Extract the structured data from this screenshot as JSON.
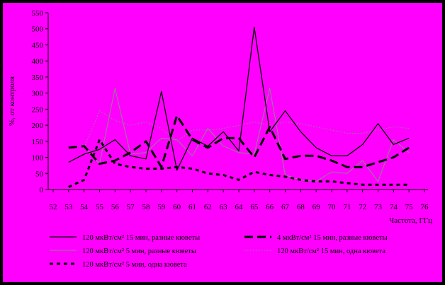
{
  "colors": {
    "background": "#FF00FF",
    "outer_frame": "#000000",
    "lines": "#000000",
    "thin_line_gray": "#888888"
  },
  "chart_data": {
    "type": "line",
    "title": "",
    "xlabel": "Частота, ГГц",
    "ylabel": "%, от контроля",
    "x": [
      52,
      53,
      54,
      55,
      56,
      57,
      58,
      59,
      60,
      61,
      62,
      63,
      64,
      65,
      66,
      67,
      68,
      69,
      70,
      71,
      72,
      73,
      74,
      75,
      76
    ],
    "xlim": [
      52,
      76
    ],
    "ylim": [
      0,
      550
    ],
    "yticks": [
      0,
      50,
      100,
      150,
      200,
      250,
      300,
      350,
      400,
      450,
      500,
      550
    ],
    "grid": false,
    "legend_position": "bottom",
    "series": [
      {
        "name": "120 мкВт/см² 15 мин, разные кюветы",
        "style": "solid-thin",
        "x": [
          53,
          54,
          55,
          56,
          57,
          58,
          59,
          60,
          61,
          62,
          63,
          64,
          65,
          66,
          67,
          68,
          69,
          70,
          71,
          72,
          73,
          74,
          75
        ],
        "values": [
          85,
          110,
          125,
          155,
          105,
          95,
          305,
          60,
          160,
          135,
          180,
          120,
          505,
          180,
          245,
          180,
          130,
          105,
          105,
          140,
          205,
          140,
          160
        ]
      },
      {
        "name": "4 мкВт/см² 15 мин, разные кюветы",
        "style": "dash-thick",
        "x": [
          53,
          54,
          55,
          56,
          57,
          58,
          59,
          60,
          61,
          62,
          63,
          64,
          65,
          66,
          67,
          68,
          69,
          70,
          71,
          72,
          73,
          74,
          75
        ],
        "values": [
          130,
          135,
          80,
          90,
          115,
          150,
          70,
          230,
          155,
          130,
          160,
          160,
          100,
          195,
          95,
          105,
          105,
          90,
          70,
          70,
          85,
          100,
          130
        ]
      },
      {
        "name": "120 мкВт/см² 5 мин, разные кюветы",
        "style": "solid-hairline",
        "x": [
          54,
          55,
          56,
          57,
          58,
          59,
          60,
          61,
          62,
          63,
          64,
          65,
          66,
          67,
          68,
          69,
          70,
          71,
          72,
          73,
          74,
          75
        ],
        "values": [
          135,
          80,
          315,
          110,
          115,
          160,
          155,
          105,
          190,
          135,
          115,
          110,
          315,
          45,
          30,
          25,
          55,
          50,
          90,
          25,
          155,
          115
        ]
      },
      {
        "name": "120 мкВт/см² 15 мин, одна кювета",
        "style": "dotted-thin",
        "x": [
          54,
          55,
          56,
          57,
          58,
          59,
          60,
          61,
          62,
          63,
          64,
          65,
          66,
          67,
          68,
          69,
          70,
          71,
          72,
          73,
          74,
          75
        ],
        "values": [
          130,
          245,
          215,
          200,
          210,
          190,
          150,
          185,
          185,
          190,
          200,
          210,
          200,
          210,
          205,
          195,
          185,
          175,
          175,
          185,
          195,
          190
        ]
      },
      {
        "name": "120 мкВт/см² 5 мин, одна кювета",
        "style": "dash-short",
        "x": [
          53,
          54,
          55,
          56,
          57,
          58,
          59,
          60,
          61,
          62,
          63,
          64,
          65,
          66,
          67,
          68,
          69,
          70,
          71,
          72,
          73,
          74,
          75
        ],
        "values": [
          8,
          30,
          155,
          80,
          70,
          65,
          65,
          70,
          65,
          50,
          45,
          30,
          55,
          45,
          40,
          30,
          25,
          25,
          20,
          15,
          15,
          15,
          15
        ]
      }
    ]
  }
}
